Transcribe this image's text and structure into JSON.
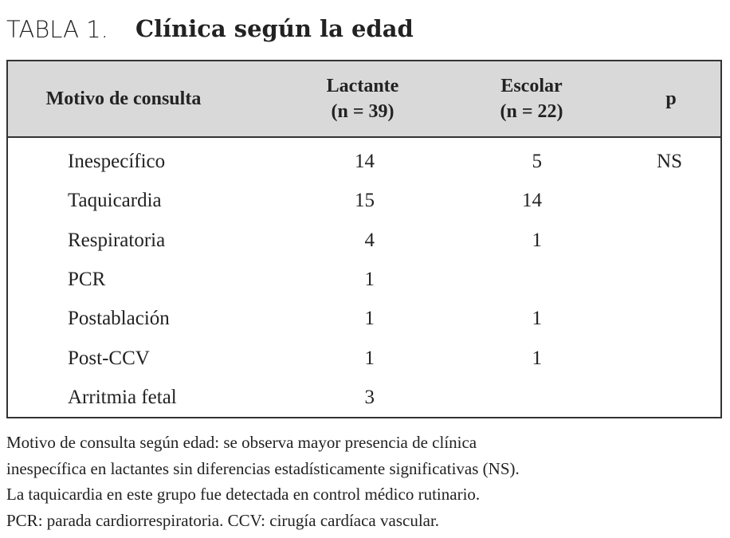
{
  "title": {
    "number": "TABLA 1.",
    "text": "Clínica según la edad"
  },
  "table": {
    "header": [
      {
        "lines": [
          "Motivo de consulta"
        ]
      },
      {
        "lines": [
          "Lactante",
          "(n = 39)"
        ]
      },
      {
        "lines": [
          "Escolar",
          "(n = 22)"
        ]
      },
      {
        "lines": [
          "p"
        ]
      }
    ],
    "rows": [
      [
        "Inespecífico",
        14,
        5,
        "NS"
      ],
      [
        "Taquicardia",
        15,
        14,
        null
      ],
      [
        "Respiratoria",
        4,
        1,
        null
      ],
      [
        "PCR",
        1,
        null,
        null
      ],
      [
        "Postablación",
        1,
        1,
        null
      ],
      [
        "Post-CCV",
        1,
        1,
        null
      ],
      [
        "Arritmia fetal",
        3,
        null,
        null
      ]
    ]
  },
  "caption": {
    "lines": [
      "Motivo de consulta según edad: se observa mayor presencia de clínica",
      "inespecífica en lactantes sin diferencias estadísticamente significativas (NS).",
      "La taquicardia en este grupo fue detectada en control médico rutinario.",
      "PCR: parada cardiorrespiratoria. CCV: cirugía cardíaca vascular."
    ]
  }
}
